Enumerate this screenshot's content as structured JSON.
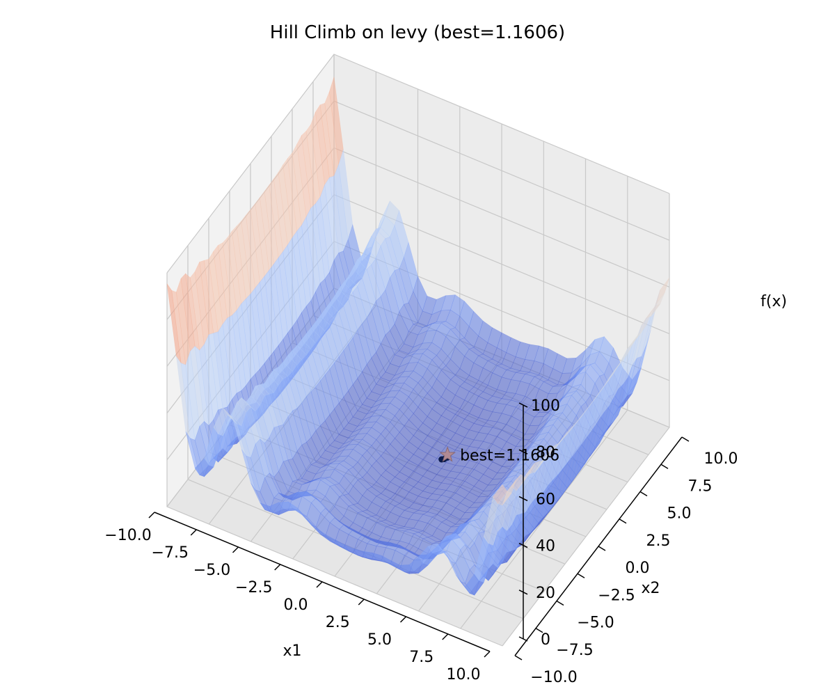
{
  "chart_data": {
    "type": "surface3d",
    "title": "Hill Climb on levy (best=1.1606)",
    "xlabel": "x1",
    "ylabel": "x2",
    "zlabel": "f(x)",
    "xlim": [
      -10,
      10
    ],
    "ylim": [
      -10,
      10
    ],
    "zlim": [
      0,
      100
    ],
    "x_ticks": [
      "−10.0",
      "−7.5",
      "−5.0",
      "−2.5",
      "0.0",
      "2.5",
      "5.0",
      "7.5",
      "10.0"
    ],
    "y_ticks": [
      "−10.0",
      "−7.5",
      "−5.0",
      "−2.5",
      "0.0",
      "2.5",
      "5.0",
      "7.5",
      "10.0"
    ],
    "z_ticks": [
      "0",
      "20",
      "40",
      "60",
      "80",
      "100"
    ],
    "x_tick_values": [
      -10,
      -7.5,
      -5,
      -2.5,
      0,
      2.5,
      5,
      7.5,
      10
    ],
    "y_tick_values": [
      -10,
      -7.5,
      -5,
      -2.5,
      0,
      2.5,
      5,
      7.5,
      10
    ],
    "z_tick_values": [
      0,
      20,
      40,
      60,
      80,
      100
    ],
    "function": "levy",
    "colormap": "coolwarm",
    "grid": true,
    "best": {
      "x1": 1.0,
      "x2": 1.5,
      "value": 1.1606,
      "label": "best=1.1606"
    },
    "path": [
      [
        0.8,
        1.2
      ],
      [
        0.9,
        1.3
      ],
      [
        1.0,
        1.5
      ]
    ]
  }
}
